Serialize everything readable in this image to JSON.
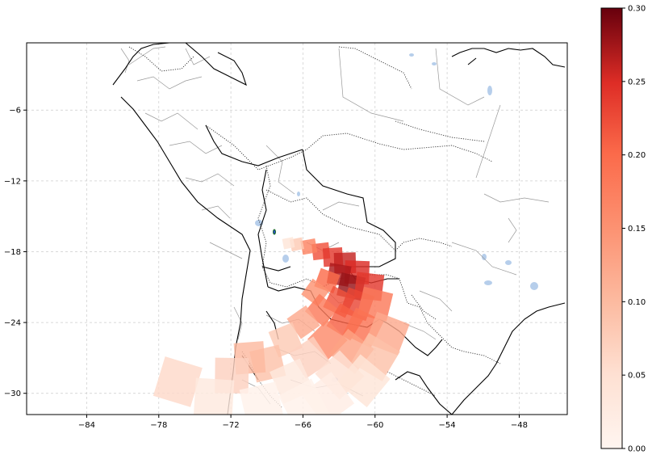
{
  "map": {
    "region": "South America",
    "x_ticks": [
      "−84",
      "−78",
      "−72",
      "−66",
      "−60",
      "−54",
      "−48"
    ],
    "y_ticks": [
      "−6",
      "−12",
      "−18",
      "−24",
      "−30"
    ],
    "extent": {
      "lon": [
        -89,
        -44
      ],
      "lat": [
        -31.8,
        -0.3
      ]
    },
    "grid": "dashed, light gray",
    "colormap": "Reds"
  },
  "colorbar": {
    "ticks": [
      "0.00",
      "0.05",
      "0.10",
      "0.15",
      "0.20",
      "0.25",
      "0.30"
    ],
    "min": 0.0,
    "max": 0.3,
    "low_color": "#fff5f0",
    "high_color": "#67000d"
  },
  "overlay": {
    "description_colors": {
      "source_marker": "#1a6b2c"
    },
    "cells": [
      {
        "lon": -64.5,
        "lat": -18.0,
        "v": 0.22
      },
      {
        "lon": -63.5,
        "lat": -18.5,
        "v": 0.24
      },
      {
        "lon": -62.5,
        "lat": -19.0,
        "v": 0.26
      },
      {
        "lon": -61.5,
        "lat": -19.8,
        "v": 0.25
      },
      {
        "lon": -63.0,
        "lat": -20.0,
        "v": 0.27
      },
      {
        "lon": -62.0,
        "lat": -21.0,
        "v": 0.28
      },
      {
        "lon": -60.5,
        "lat": -21.0,
        "v": 0.24
      },
      {
        "lon": -64.0,
        "lat": -20.5,
        "v": 0.2
      },
      {
        "lon": -65.0,
        "lat": -21.5,
        "v": 0.15
      },
      {
        "lon": -63.0,
        "lat": -22.3,
        "v": 0.22
      },
      {
        "lon": -61.5,
        "lat": -22.5,
        "v": 0.23
      },
      {
        "lon": -60.0,
        "lat": -22.5,
        "v": 0.18
      },
      {
        "lon": -64.5,
        "lat": -23.0,
        "v": 0.18
      },
      {
        "lon": -62.5,
        "lat": -24.0,
        "v": 0.21
      },
      {
        "lon": -61.0,
        "lat": -24.5,
        "v": 0.19
      },
      {
        "lon": -59.0,
        "lat": -25.0,
        "v": 0.12
      },
      {
        "lon": -66.0,
        "lat": -24.0,
        "v": 0.12
      },
      {
        "lon": -64.0,
        "lat": -25.5,
        "v": 0.16
      },
      {
        "lon": -62.0,
        "lat": -26.5,
        "v": 0.13
      },
      {
        "lon": -60.0,
        "lat": -27.0,
        "v": 0.09
      },
      {
        "lon": -67.5,
        "lat": -25.5,
        "v": 0.08
      },
      {
        "lon": -65.5,
        "lat": -27.0,
        "v": 0.07
      },
      {
        "lon": -63.0,
        "lat": -28.5,
        "v": 0.05
      },
      {
        "lon": -61.0,
        "lat": -29.0,
        "v": 0.04
      },
      {
        "lon": -69.0,
        "lat": -27.5,
        "v": 0.09
      },
      {
        "lon": -70.5,
        "lat": -27.0,
        "v": 0.1
      },
      {
        "lon": -67.0,
        "lat": -29.0,
        "v": 0.03
      },
      {
        "lon": -64.0,
        "lat": -30.5,
        "v": 0.02
      },
      {
        "lon": -72.0,
        "lat": -28.5,
        "v": 0.07
      },
      {
        "lon": -76.5,
        "lat": -29.0,
        "v": 0.06
      },
      {
        "lon": -73.5,
        "lat": -30.5,
        "v": 0.03
      },
      {
        "lon": -69.5,
        "lat": -31.0,
        "v": 0.01
      },
      {
        "lon": -66.0,
        "lat": -31.0,
        "v": 0.01
      },
      {
        "lon": -65.5,
        "lat": -17.6,
        "v": 0.17
      },
      {
        "lon": -66.5,
        "lat": -17.4,
        "v": 0.08
      },
      {
        "lon": -67.2,
        "lat": -17.3,
        "v": 0.04
      }
    ]
  }
}
